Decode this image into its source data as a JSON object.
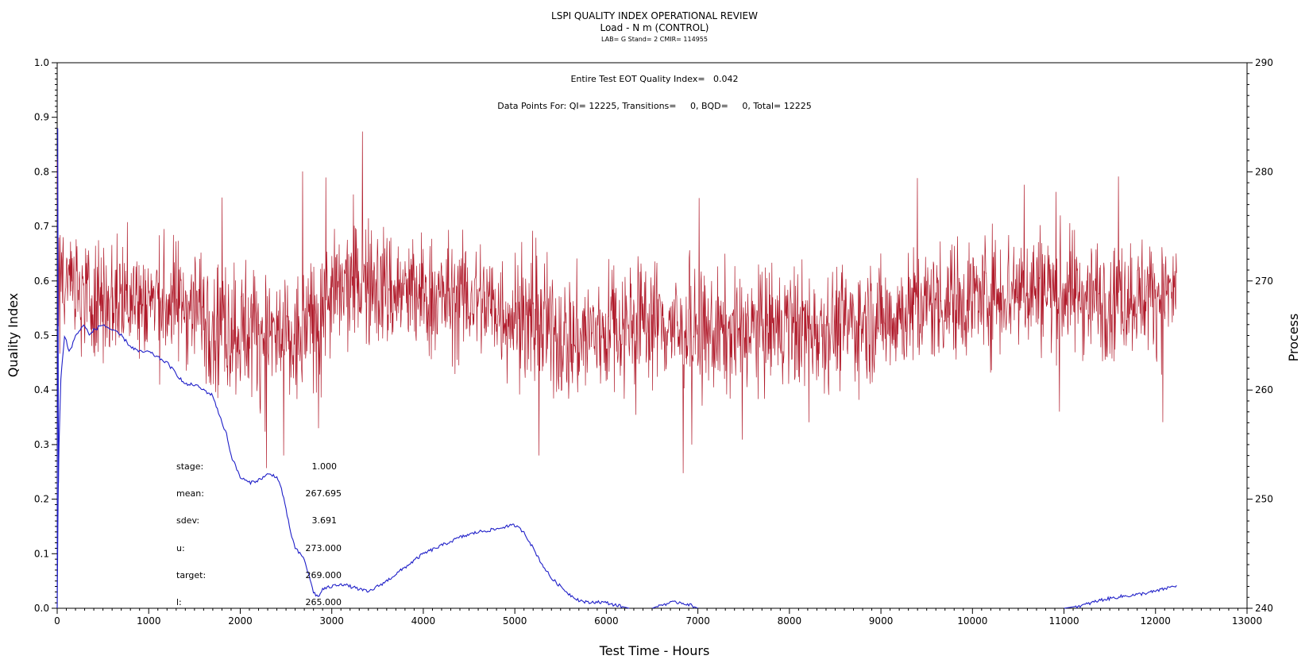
{
  "header": {
    "title": "LSPI QUALITY INDEX OPERATIONAL REVIEW",
    "subtitle": "Load - N m (CONTROL)",
    "meta": "LAB= G Stand= 2 CMIR= 114955"
  },
  "annotations": {
    "eot_quality": "Entire Test EOT Quality Index=   0.042",
    "data_points": "Data Points For: QI= 12225, Transitions=     0, BQD=     0, Total= 12225"
  },
  "stats": [
    {
      "label": "stage:",
      "value": "1.000"
    },
    {
      "label": "mean:",
      "value": "267.695"
    },
    {
      "label": "sdev:",
      "value": "3.691"
    },
    {
      "label": "u:",
      "value": "273.000"
    },
    {
      "label": "target:",
      "value": "269.000"
    },
    {
      "label": "l:",
      "value": "265.000"
    }
  ],
  "chart_data": {
    "type": "line",
    "xlabel": "Test Time - Hours",
    "ylabel": "Quality Index",
    "y2label": "Process",
    "xlim": [
      0,
      13000
    ],
    "ylim": [
      0.0,
      1.0
    ],
    "y2lim": [
      240,
      290
    ],
    "xticks": [
      0,
      1000,
      2000,
      3000,
      4000,
      5000,
      6000,
      7000,
      8000,
      9000,
      10000,
      11000,
      12000,
      13000
    ],
    "yticks": [
      0.0,
      0.1,
      0.2,
      0.3,
      0.4,
      0.5,
      0.6,
      0.7,
      0.8,
      0.9,
      1.0
    ],
    "y2ticks": [
      240,
      250,
      260,
      270,
      280,
      290
    ],
    "colors": {
      "process": "#b01a2a",
      "quality": "#1f1fc8"
    },
    "series": [
      {
        "axis": "right",
        "render": "dense-noise",
        "x": [
          0,
          500,
          1000,
          1500,
          1800,
          2200,
          2600,
          2900,
          3300,
          3700,
          4000,
          4600,
          5200,
          5600,
          6000,
          6400,
          7000,
          7600,
          8000,
          8600,
          9000,
          9600,
          10000,
          10600,
          11000,
          11400,
          11800,
          12230
        ],
        "values": [
          269.0,
          268.5,
          268.2,
          267.8,
          266.0,
          265.5,
          264.0,
          267.8,
          270.0,
          269.0,
          268.5,
          268.3,
          266.0,
          264.5,
          265.5,
          266.8,
          265.0,
          265.4,
          265.8,
          266.0,
          266.5,
          268.0,
          268.5,
          269.5,
          269.0,
          268.5,
          268.7,
          268.8
        ],
        "spread": [
          2.8,
          2.8,
          2.8,
          2.8,
          3.2,
          3.2,
          3.2,
          2.8,
          3.0,
          2.9,
          2.8,
          2.8,
          3.0,
          3.0,
          3.0,
          2.8,
          2.8,
          2.8,
          2.8,
          2.7,
          2.7,
          2.7,
          2.8,
          3.0,
          2.9,
          2.7,
          2.6,
          2.6
        ]
      },
      {
        "axis": "left",
        "render": "line",
        "segments": [
          {
            "x": [
              0,
              10,
              20,
              40,
              60,
              80,
              100,
              130,
              160,
              200,
              250,
              300,
              350,
              400,
              500,
              600,
              700,
              800,
              900,
              1000,
              1100,
              1200,
              1300,
              1350,
              1400,
              1500,
              1600,
              1700,
              1800,
              1850,
              1900,
              2000,
              2100,
              2200,
              2300,
              2350,
              2400,
              2450,
              2500,
              2550,
              2600,
              2650,
              2700,
              2750,
              2800,
              2850,
              2900,
              3000,
              3100,
              3200,
              3300,
              3400,
              3500,
              3600,
              3800,
              4000,
              4200,
              4400,
              4600,
              4800,
              4900,
              5000,
              5100,
              5200,
              5300,
              5400,
              5500,
              5600,
              5700,
              5800,
              5900,
              6000,
              6100,
              6200,
              6250
            ],
            "values": [
              0.0,
              0.2,
              0.3,
              0.42,
              0.46,
              0.5,
              0.49,
              0.47,
              0.48,
              0.5,
              0.51,
              0.52,
              0.5,
              0.51,
              0.52,
              0.51,
              0.5,
              0.48,
              0.47,
              0.47,
              0.46,
              0.45,
              0.43,
              0.42,
              0.41,
              0.41,
              0.4,
              0.39,
              0.34,
              0.32,
              0.28,
              0.24,
              0.23,
              0.235,
              0.245,
              0.245,
              0.24,
              0.22,
              0.18,
              0.14,
              0.11,
              0.1,
              0.09,
              0.06,
              0.03,
              0.02,
              0.035,
              0.04,
              0.045,
              0.04,
              0.035,
              0.03,
              0.04,
              0.05,
              0.075,
              0.1,
              0.115,
              0.13,
              0.14,
              0.145,
              0.15,
              0.152,
              0.14,
              0.11,
              0.08,
              0.055,
              0.04,
              0.025,
              0.015,
              0.01,
              0.012,
              0.01,
              0.006,
              0.002,
              0.0
            ]
          },
          {
            "x": [
              6500,
              6600,
              6700,
              6800,
              6900,
              7000
            ],
            "values": [
              0.0,
              0.006,
              0.01,
              0.011,
              0.007,
              0.0
            ]
          },
          {
            "x": [
              11000,
              11200,
              11400,
              11600,
              11800,
              12000,
              12230
            ],
            "values": [
              0.0,
              0.005,
              0.015,
              0.021,
              0.025,
              0.031,
              0.042
            ]
          }
        ]
      }
    ]
  }
}
